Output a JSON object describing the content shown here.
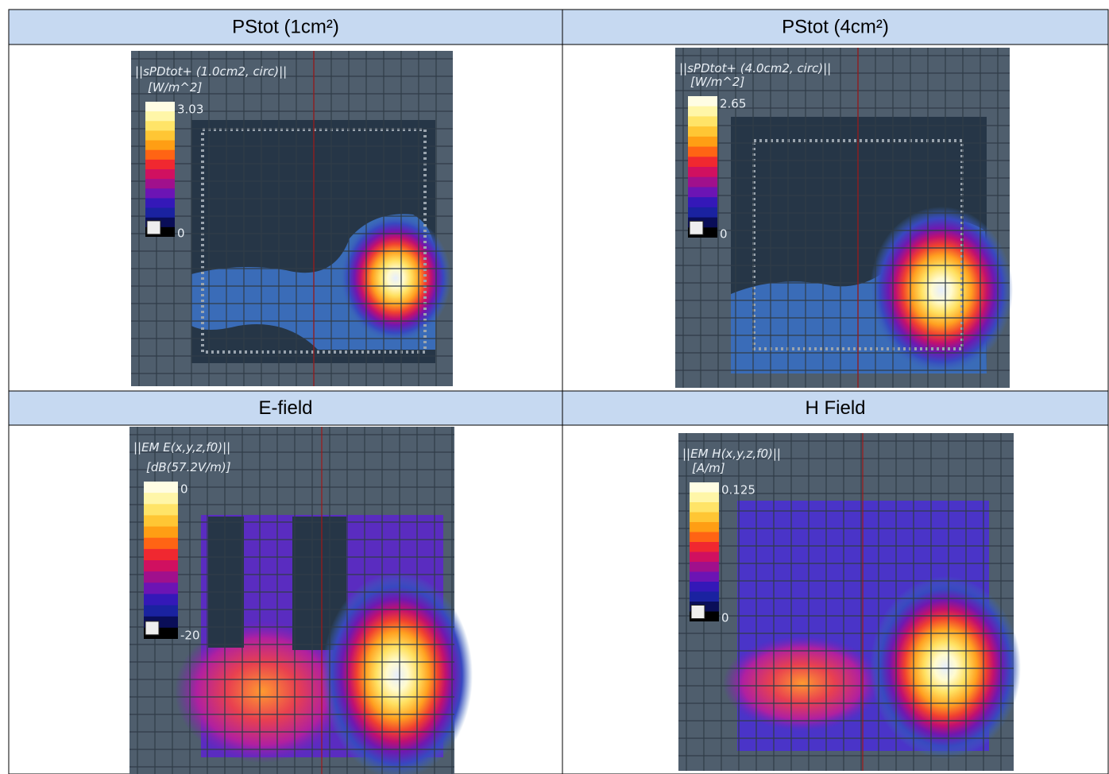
{
  "table": {
    "rows": [
      [
        {
          "header": "PStot (1cm²)",
          "plot": {
            "title": "||sPDtot+ (1.0cm2, circ)||",
            "unit": "[W/m^2]",
            "max": "3.03",
            "min": "0"
          }
        },
        {
          "header": "PStot (4cm²)",
          "plot": {
            "title": "||sPDtot+ (4.0cm2, circ)||",
            "unit": "[W/m^2]",
            "max": "2.65",
            "min": "0"
          }
        }
      ],
      [
        {
          "header": "E-field",
          "plot": {
            "title": "||EM E(x,y,z,f0)||",
            "unit": "[dB(57.2V/m)]",
            "max": "0",
            "min": "-20"
          }
        },
        {
          "header": "H Field",
          "plot": {
            "title": "||EM H(x,y,z,f0)||",
            "unit": "[A/m]",
            "max": "0.125",
            "min": "0"
          }
        }
      ]
    ]
  }
}
